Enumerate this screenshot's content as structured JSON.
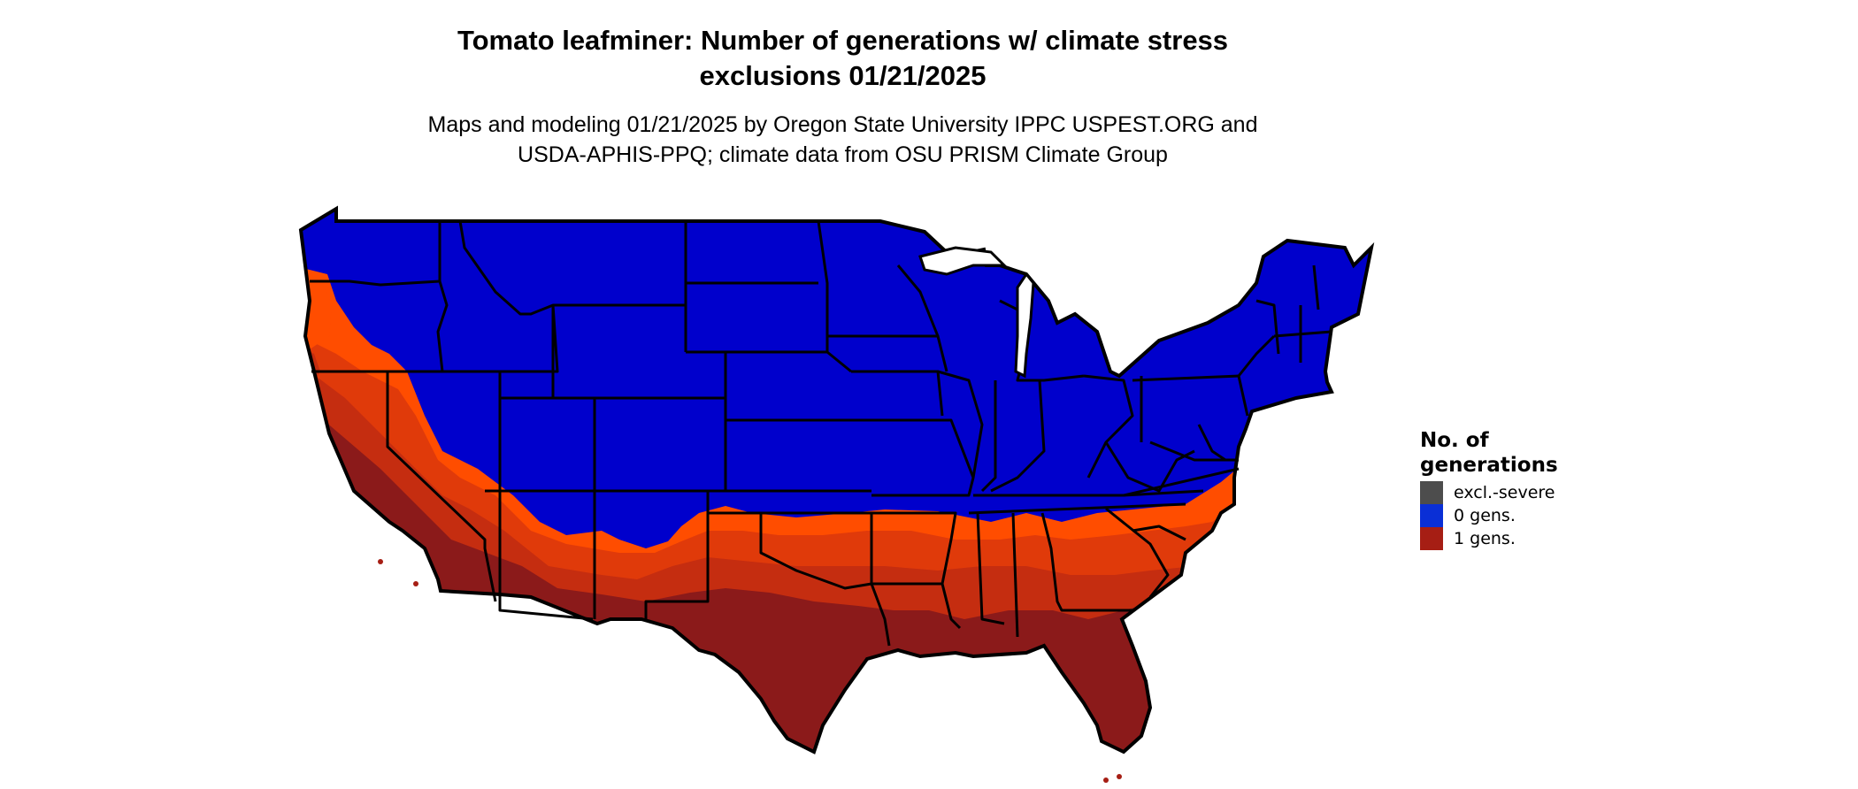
{
  "title_line1": "Tomato leafminer: Number of generations w/ climate stress",
  "title_line2": "exclusions 01/21/2025",
  "subtitle_line1": "Maps and modeling 01/21/2025 by Oregon State University IPPC USPEST.ORG and",
  "subtitle_line2": "USDA-APHIS-PPQ; climate data from OSU PRISM Climate Group",
  "legend": {
    "title": "No. of generations",
    "items": [
      {
        "label": "excl.-severe",
        "color": "#4d4d4d"
      },
      {
        "label": "0 gens.",
        "color": "#0a2fd6"
      },
      {
        "label": "1 gens.",
        "color": "#a61e14"
      }
    ]
  },
  "colors": {
    "zero_gens": "#0000cc",
    "one_gen_light": "#ff4d00",
    "one_gen_mid": "#e03a0a",
    "one_gen_dark": "#c52d10",
    "one_gen_deep": "#8b1a1a",
    "borders": "#000000"
  }
}
